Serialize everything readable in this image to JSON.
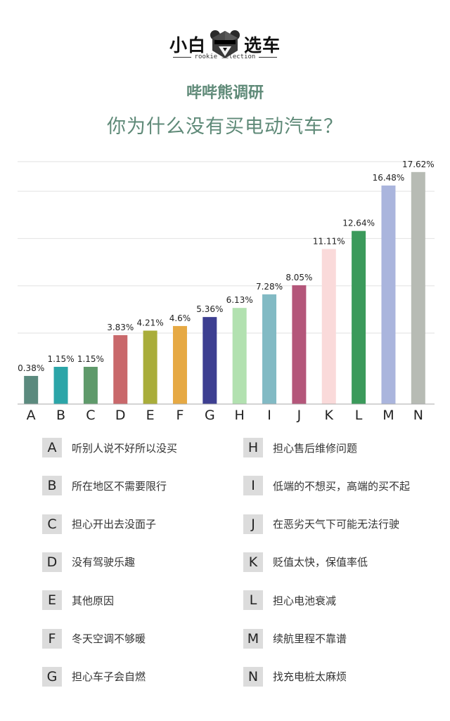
{
  "logo": {
    "text_left": "小白",
    "text_right": "选车",
    "sub": "rookie selection"
  },
  "header": {
    "title": "哔哔熊调研",
    "subtitle": "你为什么没有买电动汽车？"
  },
  "chart_data": {
    "type": "bar",
    "title": "哔哔熊调研",
    "subtitle": "你为什么没有买电动汽车？",
    "categories": [
      "A",
      "B",
      "C",
      "D",
      "E",
      "F",
      "G",
      "H",
      "I",
      "J",
      "K",
      "L",
      "M",
      "N"
    ],
    "values": [
      0.38,
      1.15,
      1.15,
      3.83,
      4.21,
      4.6,
      5.36,
      6.13,
      7.28,
      8.05,
      11.11,
      12.64,
      16.48,
      17.62
    ],
    "value_labels": [
      "0.38%",
      "1.15%",
      "1.15%",
      "3.83%",
      "4.21%",
      "4.6%",
      "5.36%",
      "6.13%",
      "7.28%",
      "8.05%",
      "11.11%",
      "12.64%",
      "16.48%",
      "17.62%"
    ],
    "colors": [
      "#5b8a7e",
      "#2ba5a8",
      "#5f9a6b",
      "#c9686b",
      "#a9ad3a",
      "#e6a944",
      "#3d3f91",
      "#b2e1b0",
      "#82bac4",
      "#b4567a",
      "#fadada",
      "#3b9a5b",
      "#aab5dd",
      "#b7bbb4"
    ],
    "xlabel": "",
    "ylabel": "",
    "ylim": [
      -2,
      18.5
    ],
    "grid": true,
    "legend": [
      {
        "key": "A",
        "label": "听别人说不好所以没买"
      },
      {
        "key": "B",
        "label": "所在地区不需要限行"
      },
      {
        "key": "C",
        "label": "担心开出去没面子"
      },
      {
        "key": "D",
        "label": "没有驾驶乐趣"
      },
      {
        "key": "E",
        "label": "其他原因"
      },
      {
        "key": "F",
        "label": "冬天空调不够暖"
      },
      {
        "key": "G",
        "label": "担心车子会自燃"
      },
      {
        "key": "H",
        "label": "担心售后维修问题"
      },
      {
        "key": "I",
        "label": "低端的不想买，高端的买不起"
      },
      {
        "key": "J",
        "label": "在恶劣天气下可能无法行驶"
      },
      {
        "key": "K",
        "label": "贬值太快，保值率低"
      },
      {
        "key": "L",
        "label": "担心电池衰减"
      },
      {
        "key": "M",
        "label": "续航里程不靠谱"
      },
      {
        "key": "N",
        "label": "找充电桩太麻烦"
      }
    ]
  }
}
